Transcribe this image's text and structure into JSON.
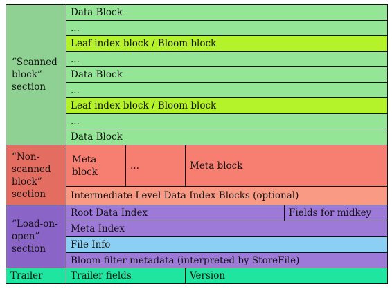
{
  "sections": {
    "scanned": [
      "“Scanned",
      "block”",
      "section"
    ],
    "non_scanned": [
      "“Non-",
      "scanned",
      "block”",
      "section"
    ],
    "load_on_open": [
      "“Load-on-",
      "open”",
      "section"
    ],
    "trailer": "Trailer"
  },
  "scanned_rows": [
    "Data Block",
    "...",
    "Leaf index block / Bloom block",
    "...",
    "Data Block",
    "...",
    "Leaf index block / Bloom block",
    "...",
    "Data Block"
  ],
  "non_scanned": {
    "meta_block_1": [
      "Meta",
      "block"
    ],
    "ellipsis": "...",
    "meta_block_2": "Meta block",
    "intermediate": "Intermediate Level Data Index Blocks (optional)"
  },
  "load_on_open": {
    "root_index": "Root Data Index",
    "midkey": "Fields for midkey",
    "meta_index": "Meta Index",
    "file_info": "File Info",
    "bloom_meta": "Bloom filter metadata (interpreted by StoreFile)"
  },
  "trailer": {
    "fields": "Trailer fields",
    "version": "Version"
  },
  "colors": {
    "data_block": "#95e597",
    "leaf_index": "#b4f22a",
    "meta_block": "#f77f71",
    "intermediate": "#f99a85",
    "load_on_open": "#9d7ad8",
    "file_info": "#8bd0f4",
    "trailer": "#1ee6a0"
  }
}
